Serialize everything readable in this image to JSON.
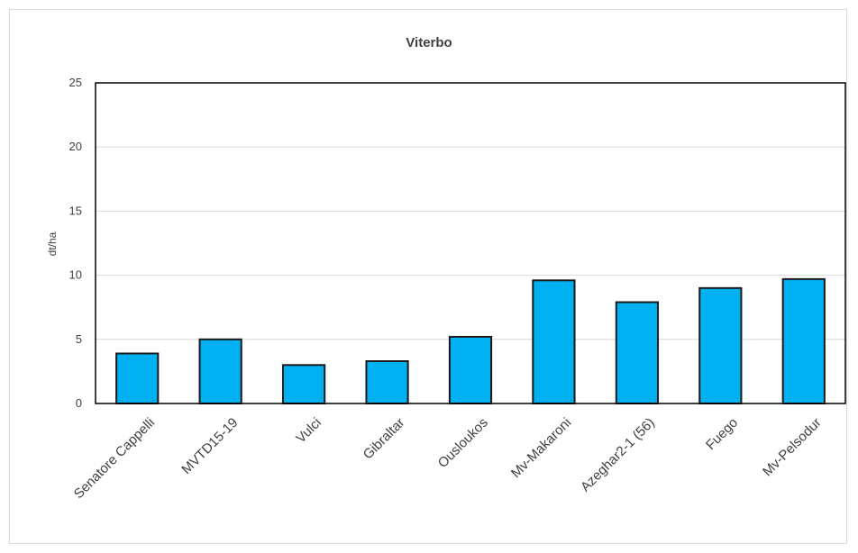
{
  "chart_data": {
    "type": "bar",
    "title": "Viterbo",
    "ylabel": "dt/ha",
    "xlabel": "",
    "categories": [
      "Senatore Cappelli",
      "MVTD15-19",
      "Vulci",
      "Gibraltar",
      "Ousloukos",
      "Mv-Makaroni",
      "Azeghar2-1 (56)",
      "Fuego",
      "Mv-Pelsodur"
    ],
    "values": [
      3.9,
      5.0,
      3.0,
      3.3,
      5.2,
      9.6,
      7.9,
      9.0,
      9.7
    ],
    "ylim": [
      0,
      25
    ],
    "yticks": [
      "0",
      "5",
      "10",
      "15",
      "20",
      "25"
    ],
    "ytick_values": [
      0,
      5,
      10,
      15,
      20,
      25
    ],
    "grid": true,
    "bar_color": "#00b0f0",
    "bar_edge_color": "#1a1a1a"
  }
}
